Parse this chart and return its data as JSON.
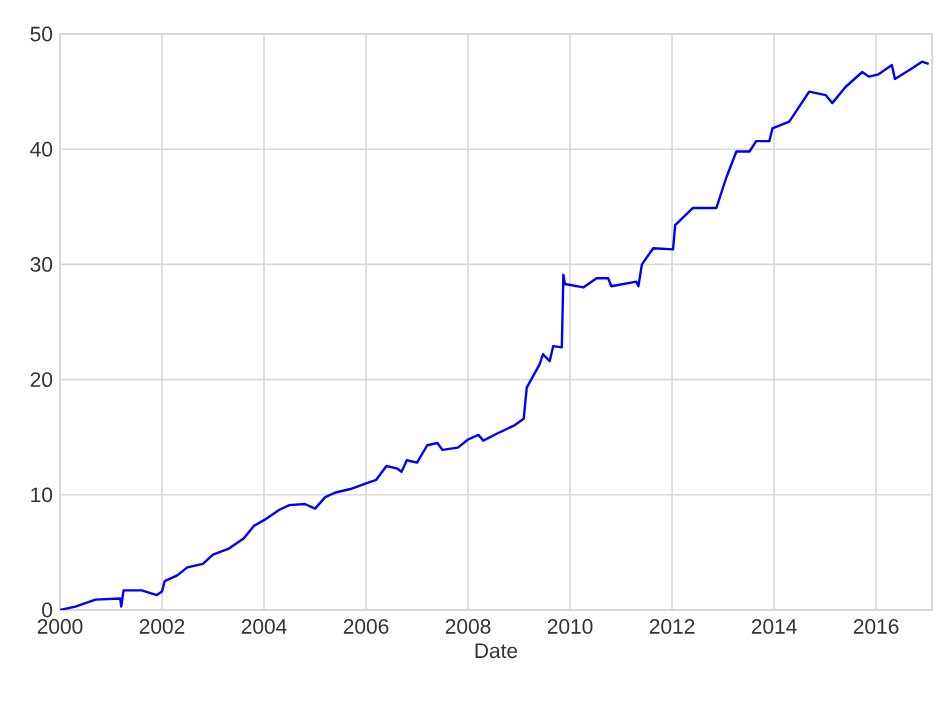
{
  "chart_data": {
    "type": "line",
    "xlabel": "Date",
    "grid": true,
    "xlim": [
      "2000-01-01",
      "2017-02-05"
    ],
    "xticks": [
      "2000",
      "2002",
      "2004",
      "2006",
      "2008",
      "2010",
      "2012",
      "2014",
      "2016"
    ],
    "ylim": [
      0,
      50
    ],
    "yticks": [
      0,
      10,
      20,
      30,
      40,
      50
    ],
    "x": [
      "2000-01-01",
      "2000-04-20",
      "2000-09-12",
      "2001-03-08",
      "2001-03-15",
      "2001-04-01",
      "2001-08-08",
      "2001-11-25",
      "2002-01-01",
      "2002-01-20",
      "2002-04-20",
      "2002-07-01",
      "2002-10-20",
      "2003-01-01",
      "2003-04-20",
      "2003-08-08",
      "2003-10-20",
      "2004-01-01",
      "2004-04-20",
      "2004-07-01",
      "2004-10-20",
      "2005-01-01",
      "2005-03-15",
      "2005-05-27",
      "2005-09-12",
      "2006-01-01",
      "2006-03-15",
      "2006-05-27",
      "2006-08-08",
      "2006-09-12",
      "2006-10-20",
      "2007-01-01",
      "2007-03-15",
      "2007-05-27",
      "2007-07-01",
      "2007-10-20",
      "2008-01-01",
      "2008-03-15",
      "2008-04-20",
      "2008-07-24",
      "2008-11-25",
      "2009-02-03",
      "2009-02-25",
      "2009-05-27",
      "2009-06-21",
      "2009-08-08",
      "2009-09-02",
      "2009-11-03",
      "2009-11-14",
      "2009-11-25",
      "2010-04-06",
      "2010-07-09",
      "2010-10-01",
      "2010-10-23",
      "2011-04-20",
      "2011-05-05",
      "2011-05-30",
      "2011-08-19",
      "2012-01-08",
      "2012-01-23",
      "2012-05-30",
      "2012-11-14",
      "2013-01-23",
      "2013-04-06",
      "2013-07-09",
      "2013-08-26",
      "2013-11-28",
      "2013-12-20",
      "2014-04-20",
      "2014-09-09",
      "2015-01-05",
      "2015-02-21",
      "2015-05-27",
      "2015-09-24",
      "2015-11-10",
      "2016-01-19",
      "2016-04-23",
      "2016-05-15",
      "2016-09-13",
      "2016-11-25",
      "2017-01-12"
    ],
    "series": [
      {
        "color": "#0000ff",
        "values": [
          0,
          0.3,
          0.9,
          1.0,
          0.3,
          1.7,
          1.7,
          1.3,
          1.6,
          2.5,
          3.0,
          3.7,
          4.0,
          4.8,
          5.3,
          6.2,
          7.3,
          7.8,
          8.7,
          9.1,
          9.2,
          8.8,
          9.8,
          10.2,
          10.5,
          11.0,
          11.3,
          12.5,
          12.3,
          12.0,
          13.0,
          12.8,
          14.3,
          14.5,
          13.9,
          14.1,
          14.8,
          15.2,
          14.7,
          15.3,
          16.0,
          16.6,
          19.3,
          21.3,
          22.2,
          21.6,
          22.9,
          22.8,
          29.1,
          28.3,
          28.0,
          28.8,
          28.8,
          28.1,
          28.5,
          28.1,
          30.0,
          31.4,
          31.3,
          33.4,
          34.9,
          34.9,
          37.5,
          39.8,
          39.8,
          40.7,
          40.7,
          41.8,
          42.4,
          45.0,
          44.7,
          44.0,
          45.4,
          46.7,
          46.3,
          46.5,
          47.3,
          46.1,
          47.0,
          47.6,
          47.4
        ]
      }
    ]
  }
}
